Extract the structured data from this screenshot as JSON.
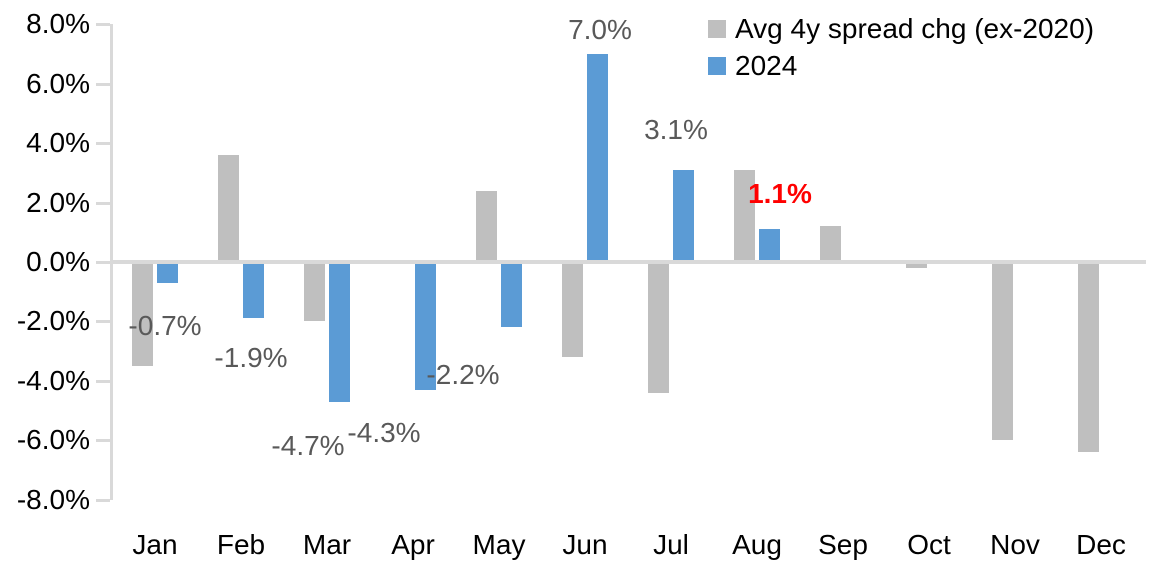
{
  "chart_data": {
    "type": "bar",
    "title": "",
    "categories": [
      "Jan",
      "Feb",
      "Mar",
      "Apr",
      "May",
      "Jun",
      "Jul",
      "Aug",
      "Sep",
      "Oct",
      "Nov",
      "Dec"
    ],
    "series": [
      {
        "name": "Avg 4y spread chg (ex-2020)",
        "color": "#BFBFBF",
        "values": [
          -3.5,
          3.6,
          -2.0,
          0.0,
          2.4,
          -3.2,
          -4.4,
          3.1,
          1.2,
          -0.2,
          -6.0,
          -6.4
        ]
      },
      {
        "name": "2024",
        "color": "#5B9BD5",
        "values": [
          -0.7,
          -1.9,
          -4.7,
          -4.3,
          -2.2,
          7.0,
          3.1,
          1.1,
          null,
          null,
          null,
          null
        ]
      }
    ],
    "value_labels": [
      {
        "category": "Jan",
        "series": "2024",
        "text": "-0.7%",
        "highlight": false
      },
      {
        "category": "Feb",
        "series": "2024",
        "text": "-1.9%",
        "highlight": false
      },
      {
        "category": "Mar",
        "series": "2024",
        "text": "-4.7%",
        "highlight": false
      },
      {
        "category": "Apr",
        "series": "2024",
        "text": "-4.3%",
        "highlight": false
      },
      {
        "category": "May",
        "series": "2024",
        "text": "-2.2%",
        "highlight": false
      },
      {
        "category": "Jun",
        "series": "2024",
        "text": "7.0%",
        "highlight": false
      },
      {
        "category": "Jul",
        "series": "2024",
        "text": "3.1%",
        "highlight": false
      },
      {
        "category": "Aug",
        "series": "2024",
        "text": "1.1%",
        "highlight": true
      }
    ],
    "ylim": [
      -8,
      8
    ],
    "ytick_step": 2,
    "ytick_labels": [
      "8.0%",
      "6.0%",
      "4.0%",
      "2.0%",
      "0.0%",
      "-2.0%",
      "-4.0%",
      "-6.0%",
      "-8.0%"
    ],
    "grid": false,
    "legend_position": "top-right",
    "colors": {
      "axis": "#D9D9D9",
      "data_label": "#595959",
      "highlight": "#FF0000",
      "axis_text": "#000000"
    }
  }
}
